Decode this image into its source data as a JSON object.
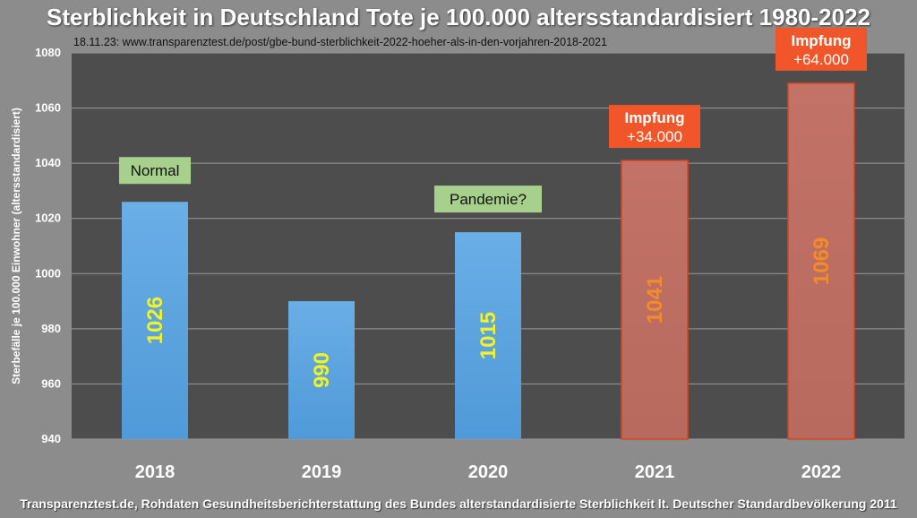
{
  "title": "Sterblichkeit in Deutschland Tote je 100.000 altersstandardisiert 1980-2022",
  "source_line": "18.11.23: www.transparenztest.de/post/gbe-bund-sterblichkeit-2022-hoeher-als-in-den-vorjahren-2018-2021",
  "footer": "Transparenztest.de, Rohdaten Gesundheitsberichterstattung des Bundes alterstandardisierte Sterblichkeit lt. Deutscher Standardbevölkerung 2011",
  "colors": {
    "background": "#8c8c8c",
    "plot_area": "#4d4d4d",
    "blue_bar": "#6aaee6",
    "red_bar": "#c27266",
    "label_yellow": "#f2f227",
    "label_orange": "#f28c28",
    "annotation_green": "#a8d08d",
    "annotation_red": "#f0562a"
  },
  "chart_data": {
    "type": "bar",
    "categories": [
      "2018",
      "2019",
      "2020",
      "2021",
      "2022"
    ],
    "values": [
      1026,
      990,
      1015,
      1041,
      1069
    ],
    "data_labels": [
      "1026",
      "990",
      "1015",
      "1041",
      "1069"
    ],
    "bar_colors": [
      "blue",
      "blue",
      "blue",
      "red",
      "red"
    ],
    "ylabel": "Sterbefälle je 100.000 Einwohner (altersstandardisiert)",
    "ylim": [
      940,
      1080
    ],
    "yticks": [
      940,
      960,
      980,
      1000,
      1020,
      1040,
      1060,
      1080
    ],
    "grid": true,
    "annotations": [
      {
        "category": "2018",
        "lines": [
          "Normal"
        ],
        "style": "green"
      },
      {
        "category": "2020",
        "lines": [
          "Pandemie?"
        ],
        "style": "green"
      },
      {
        "category": "2021",
        "lines": [
          "Impfung",
          "+34.000"
        ],
        "style": "red"
      },
      {
        "category": "2022",
        "lines": [
          "Impfung",
          "+64.000"
        ],
        "style": "red"
      }
    ]
  }
}
